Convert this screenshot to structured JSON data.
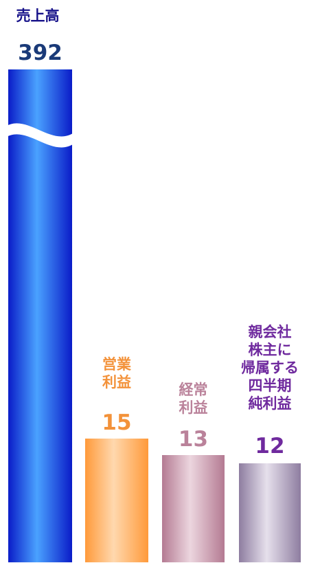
{
  "chart_data": {
    "type": "bar",
    "categories": [
      "売上高",
      "営業\n利益",
      "経常\n利益",
      "親会社\n株主に\n帰属する\n四半期\n純利益"
    ],
    "values": [
      392,
      15,
      13,
      12
    ],
    "value_labels": [
      "392",
      "15",
      "13",
      "12"
    ],
    "axis_break": "first bar broken (wavy cut near top)",
    "grid": false,
    "legend": "none",
    "colors": {
      "bar_0": [
        "#0a1cc8",
        "#4aa2ff"
      ],
      "bar_1": [
        "#ff9a3a",
        "#ffd8ae"
      ],
      "bar_2": [
        "#b47a92",
        "#ecd6df"
      ],
      "bar_3": [
        "#8e7da0",
        "#e6e0ec"
      ],
      "label_0": "#17128a",
      "value_0": "#1a3a78",
      "label_1": "#f3923a",
      "label_2": "#ba829a",
      "label_3": "#6f2a9e"
    }
  }
}
